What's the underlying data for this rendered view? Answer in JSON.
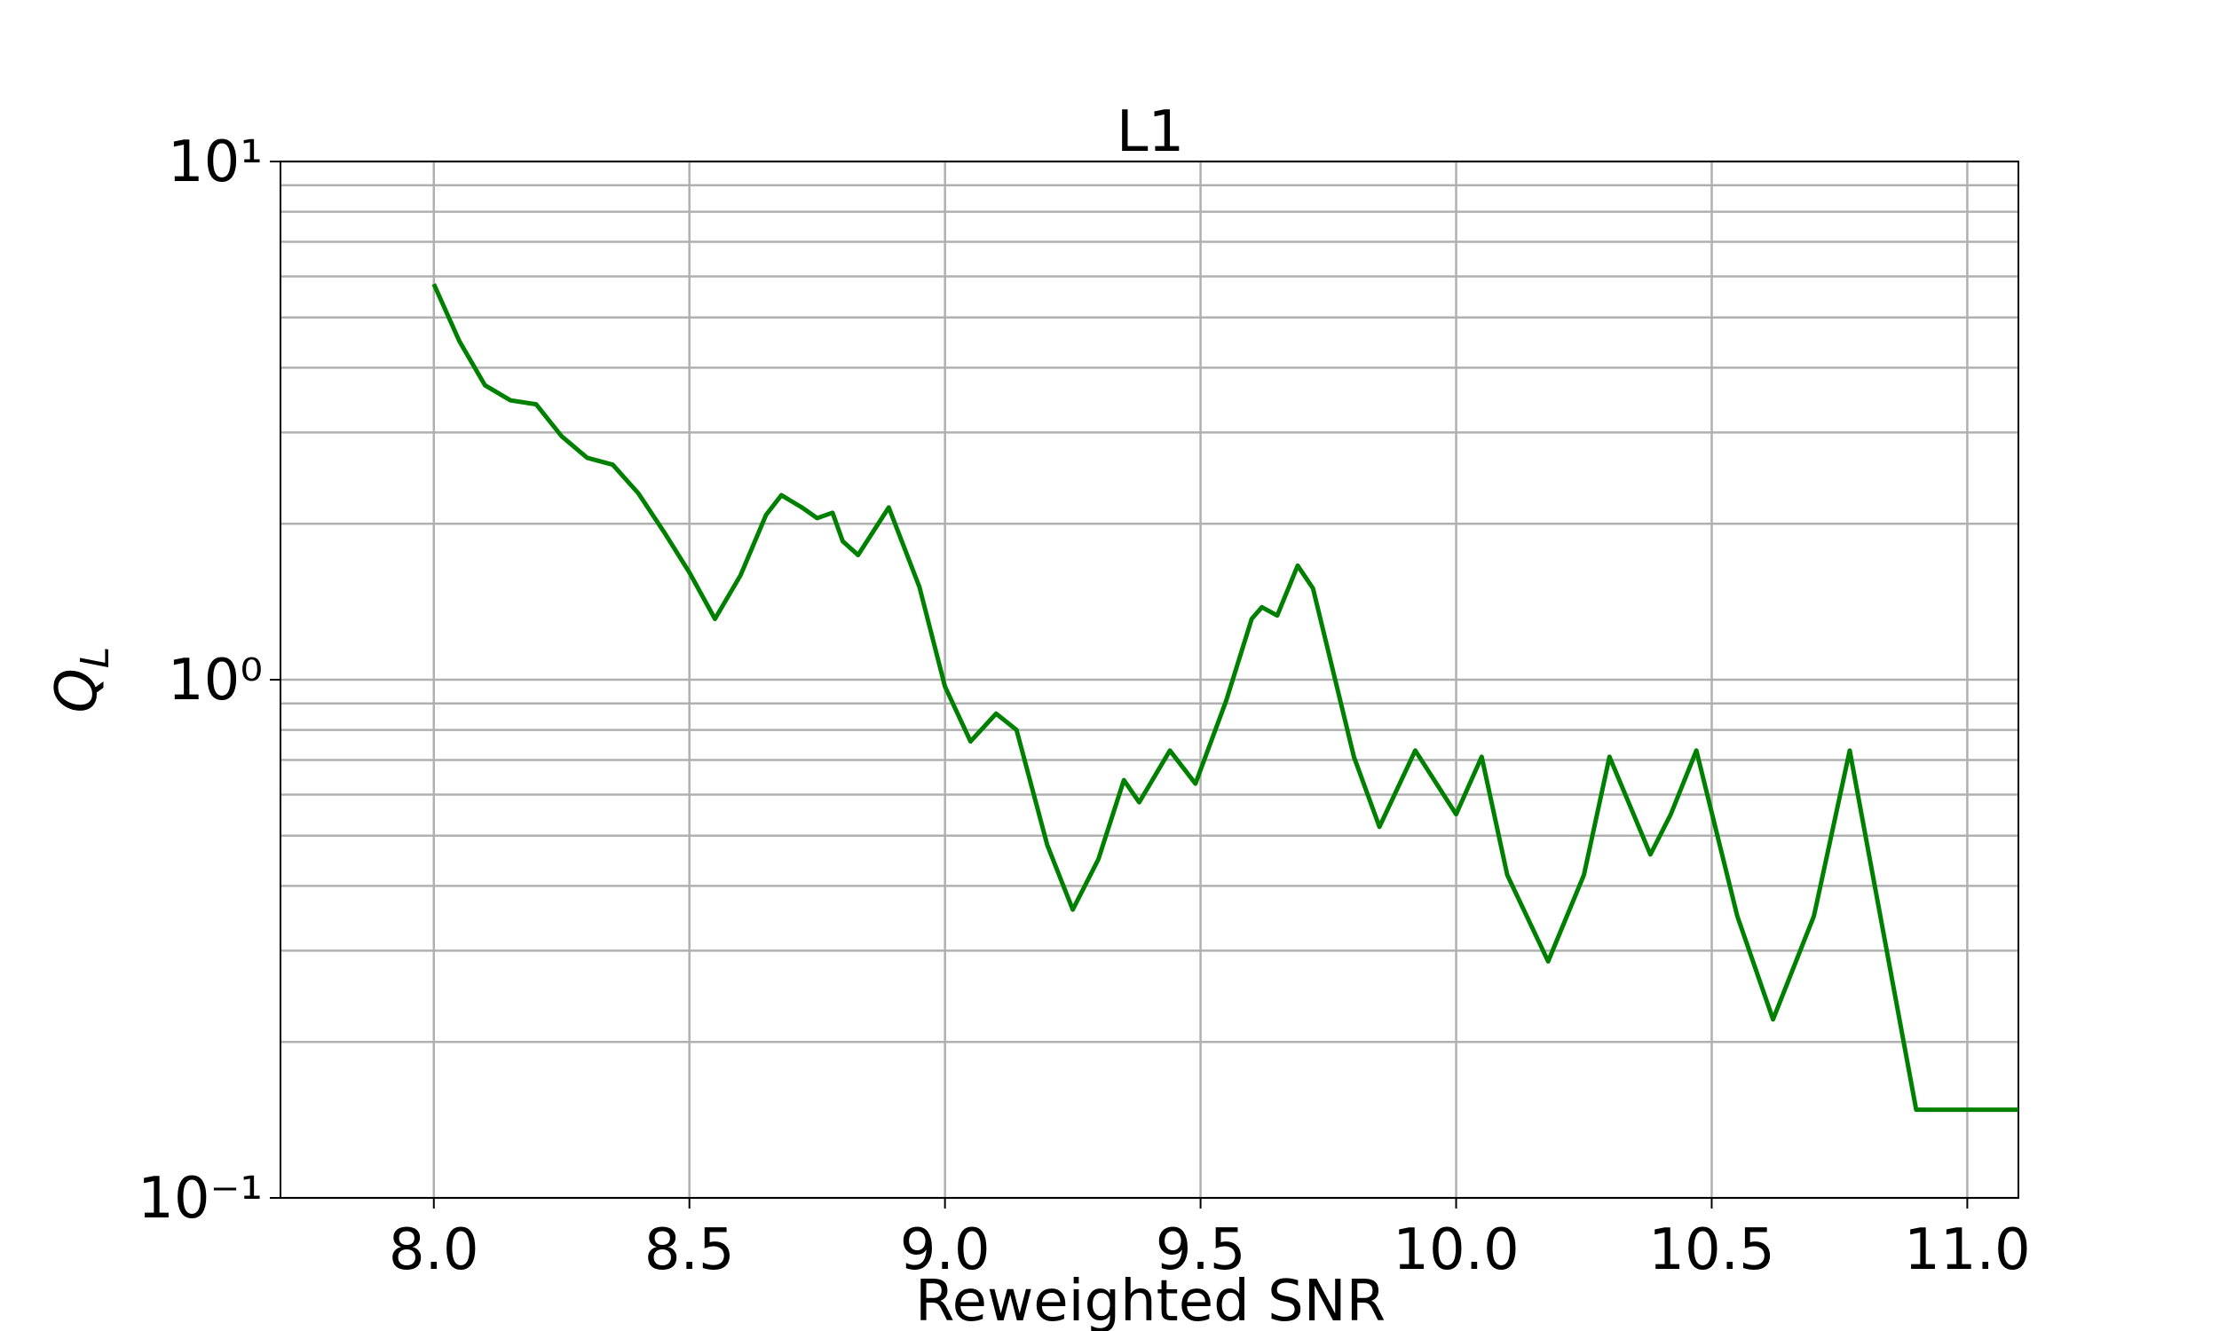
{
  "chart_data": {
    "type": "line",
    "title": "L1",
    "xlabel": "Reweighted SNR",
    "ylabel": "Q",
    "ylabel_sub": "L",
    "log_y": true,
    "grid": true,
    "xlim": [
      7.7,
      11.1
    ],
    "ylim": [
      0.1,
      10
    ],
    "xticks": [
      {
        "value": 8,
        "label": "8.0"
      },
      {
        "value": 8.5,
        "label": "8.5"
      },
      {
        "value": 9,
        "label": "9.0"
      },
      {
        "value": 9.5,
        "label": "9.5"
      },
      {
        "value": 10,
        "label": "10.0"
      },
      {
        "value": 10.5,
        "label": "10.5"
      },
      {
        "value": 11,
        "label": "11.0"
      }
    ],
    "yticks": [
      {
        "value": 0.1,
        "label": "10⁻¹"
      },
      {
        "value": 1,
        "label": "10⁰"
      },
      {
        "value": 10,
        "label": "10¹"
      }
    ],
    "yticks_minor": [
      0.2,
      0.3,
      0.4,
      0.5,
      0.6,
      0.7,
      0.8,
      0.9,
      2,
      3,
      4,
      5,
      6,
      7,
      8,
      9
    ],
    "series": [
      {
        "name": "L1",
        "color": "#008000",
        "x": [
          8.0,
          8.05,
          8.1,
          8.15,
          8.2,
          8.25,
          8.3,
          8.35,
          8.4,
          8.45,
          8.5,
          8.55,
          8.6,
          8.65,
          8.68,
          8.72,
          8.75,
          8.78,
          8.8,
          8.83,
          8.89,
          8.95,
          9.0,
          9.05,
          9.1,
          9.14,
          9.2,
          9.25,
          9.3,
          9.35,
          9.38,
          9.44,
          9.49,
          9.55,
          9.6,
          9.62,
          9.65,
          9.69,
          9.72,
          9.8,
          9.85,
          9.92,
          10.0,
          10.05,
          10.1,
          10.18,
          10.25,
          10.3,
          10.38,
          10.42,
          10.47,
          10.55,
          10.62,
          10.7,
          10.77,
          10.9,
          11.1
        ],
        "values": [
          5.8,
          4.5,
          3.7,
          3.46,
          3.4,
          2.95,
          2.68,
          2.6,
          2.29,
          1.93,
          1.61,
          1.31,
          1.59,
          2.08,
          2.27,
          2.15,
          2.05,
          2.1,
          1.85,
          1.74,
          2.15,
          1.51,
          0.97,
          0.76,
          0.86,
          0.8,
          0.48,
          0.36,
          0.45,
          0.64,
          0.58,
          0.73,
          0.63,
          0.91,
          1.31,
          1.38,
          1.33,
          1.66,
          1.5,
          0.71,
          0.52,
          0.73,
          0.55,
          0.71,
          0.42,
          0.286,
          0.42,
          0.71,
          0.46,
          0.55,
          0.73,
          0.35,
          0.221,
          0.35,
          0.73,
          0.148,
          0.148
        ]
      }
    ]
  }
}
